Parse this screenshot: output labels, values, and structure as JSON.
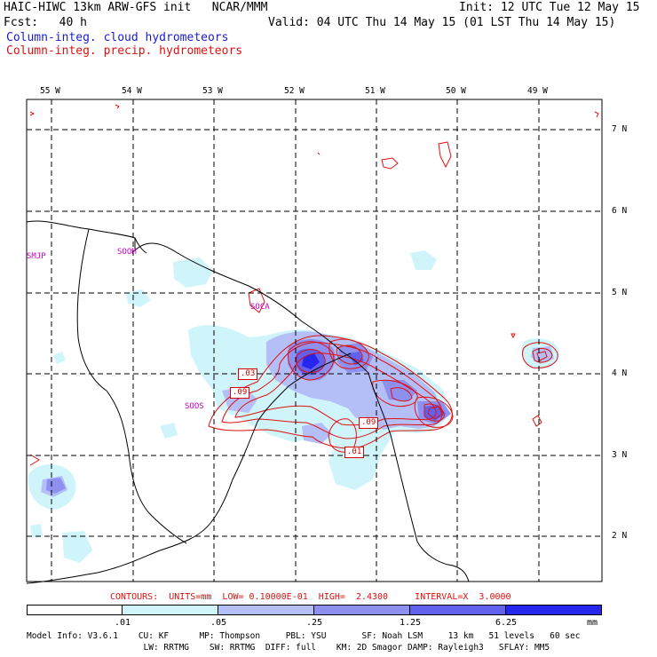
{
  "header": {
    "title": "HAIC-HIWC 13km ARW-GFS init   NCAR/MMM",
    "forecast": "Fcst:   40 h",
    "init": "Init: 12 UTC Tue 12 May 15",
    "valid": "Valid: 04 UTC Thu 14 May 15 (01 LST Thu 14 May 15)",
    "legend_cloud": "Column-integ. cloud hydrometeors",
    "legend_precip": "Column-integ. precip. hydrometeors"
  },
  "map": {
    "lon_labels": [
      "55 W",
      "54 W",
      "53 W",
      "52 W",
      "51 W",
      "50 W",
      "49 W"
    ],
    "lat_labels": [
      "7 N",
      "6 N",
      "5 N",
      "4 N",
      "3 N",
      "2 N"
    ],
    "places": [
      "SMJP",
      "SOOM",
      "SOCA",
      "SOOS"
    ],
    "contour_labels": [
      ".03",
      ".09",
      ".09",
      ".01"
    ]
  },
  "contour_info": "CONTOURS:  UNITS=mm  LOW= 0.10000E-01  HIGH=  2.4300     INTERVAL=X  3.0000",
  "colorbar": {
    "ticks": [
      ".01",
      ".05",
      ".25",
      "1.25",
      "6.25"
    ],
    "units": "mm",
    "colors": [
      "#ffffff",
      "#cff5fb",
      "#b4bff7",
      "#8e90f0",
      "#6161ee",
      "#2626ec"
    ]
  },
  "model_info": {
    "line1": "Model Info: V3.6.1    CU: KF      MP: Thompson     PBL: YSU       SF: Noah LSM     13 km   51 levels   60 sec",
    "line2": "                       LW: RRTMG    SW: RRTMG  DIFF: full    KM: 2D Smagor DAMP: Rayleigh3   SFLAY: MM5"
  }
}
